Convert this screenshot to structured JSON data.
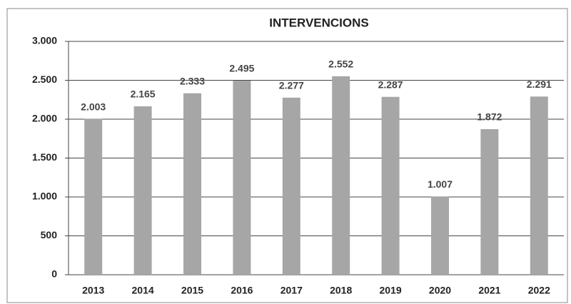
{
  "chart_data": {
    "type": "bar",
    "title": "INTERVENCIONS",
    "categories": [
      "2013",
      "2014",
      "2015",
      "2016",
      "2017",
      "2018",
      "2019",
      "2020",
      "2021",
      "2022"
    ],
    "values": [
      2003,
      2165,
      2333,
      2495,
      2277,
      2552,
      2287,
      1007,
      1872,
      2291
    ],
    "value_labels": [
      "2.003",
      "2.165",
      "2.333",
      "2.495",
      "2.277",
      "2.552",
      "2.287",
      "1.007",
      "1.872",
      "2.291"
    ],
    "color": "#a6a6a6",
    "ylim": [
      0,
      3000
    ],
    "yticks": [
      0,
      500,
      {
        "value": 1000,
        "label": "1.000"
      },
      {
        "value": 1500,
        "label": "1.500"
      },
      {
        "value": 2000,
        "label": "2.000"
      },
      {
        "value": 2500,
        "label": "2.500"
      },
      {
        "value": 3000,
        "label": "3.000"
      }
    ],
    "grid": true
  }
}
